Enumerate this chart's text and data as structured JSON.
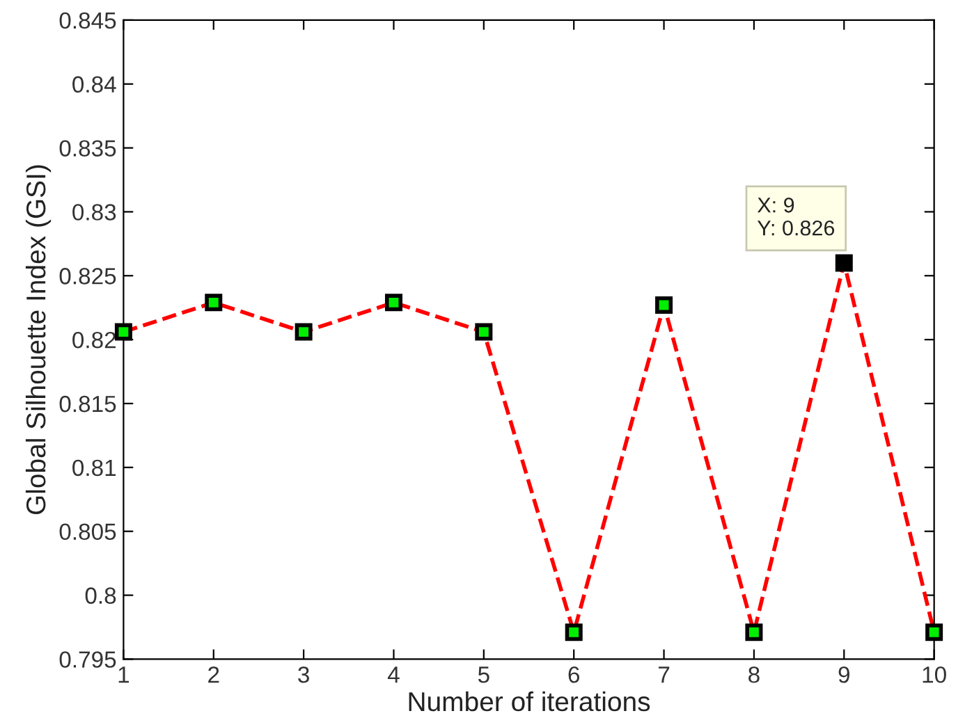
{
  "chart_data": {
    "type": "line",
    "xlabel": "Number of iterations",
    "ylabel": "Global Silhouette Index (GSI)",
    "x": [
      1,
      2,
      3,
      4,
      5,
      6,
      7,
      8,
      9,
      10
    ],
    "series": [
      {
        "color": "#ff0000",
        "colors": [
          "#00ee00",
          "#00ee00",
          "#00ee00",
          "#00ee00",
          "#00ee00",
          "#00ee00",
          "#00ee00",
          "#00ee00",
          "#000000",
          "#00ee00"
        ],
        "values": [
          0.8206,
          0.8229,
          0.8206,
          0.8229,
          0.8206,
          0.7971,
          0.8227,
          0.7971,
          0.826,
          0.7971
        ]
      }
    ],
    "xlim": [
      1,
      10
    ],
    "xticks": [
      1,
      2,
      3,
      4,
      5,
      6,
      7,
      8,
      9,
      10
    ],
    "ylim": [
      0.795,
      0.845
    ],
    "yticks": [
      0.795,
      0.8,
      0.805,
      0.81,
      0.815,
      0.82,
      0.825,
      0.83,
      0.835,
      0.84,
      0.845
    ],
    "annotations": [
      {
        "text": "X: 9\nY: 0.826",
        "x": 9,
        "y": 0.826
      }
    ],
    "marker": "square",
    "line_style": "dashed",
    "grid": false
  }
}
